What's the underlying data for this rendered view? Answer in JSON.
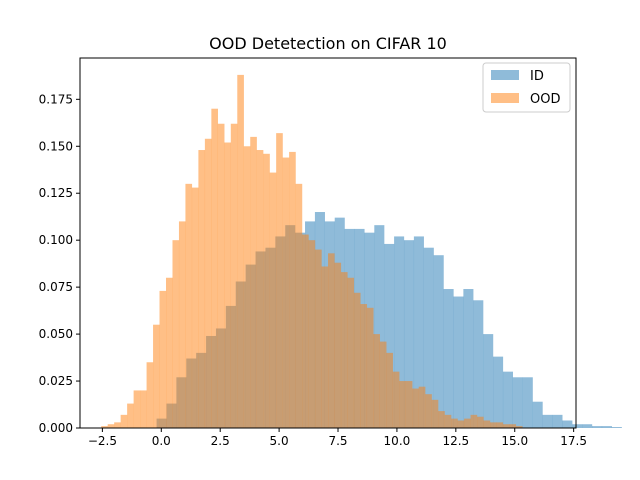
{
  "chart_data": {
    "type": "bar",
    "subtype": "histogram",
    "title": "OOD Detetection on CIFAR 10",
    "xlabel": "",
    "ylabel": "",
    "xlim": [
      -3.45,
      17.6
    ],
    "ylim": [
      0,
      0.197
    ],
    "xticks": [
      -2.5,
      0.0,
      2.5,
      5.0,
      7.5,
      10.0,
      12.5,
      15.0,
      17.5
    ],
    "xtick_labels": [
      "−2.5",
      "0.0",
      "2.5",
      "5.0",
      "7.5",
      "10.0",
      "12.5",
      "15.0",
      "17.5"
    ],
    "yticks": [
      0.0,
      0.025,
      0.05,
      0.075,
      0.1,
      0.125,
      0.15,
      0.175
    ],
    "ytick_labels": [
      "0.000",
      "0.025",
      "0.050",
      "0.075",
      "0.100",
      "0.125",
      "0.150",
      "0.175"
    ],
    "grid": false,
    "legend_position": "top-right",
    "series": [
      {
        "name": "ID",
        "color": "#1f77b4",
        "alpha": 0.5,
        "bin_start": -0.2,
        "bin_width": 0.42,
        "values": [
          0.005,
          0.013,
          0.027,
          0.037,
          0.04,
          0.049,
          0.053,
          0.065,
          0.078,
          0.087,
          0.094,
          0.096,
          0.102,
          0.108,
          0.104,
          0.11,
          0.115,
          0.11,
          0.112,
          0.106,
          0.106,
          0.104,
          0.108,
          0.098,
          0.102,
          0.1,
          0.102,
          0.096,
          0.092,
          0.074,
          0.07,
          0.074,
          0.068,
          0.05,
          0.038,
          0.03,
          0.027,
          0.027,
          0.014,
          0.007,
          0.007,
          0.004,
          0.002,
          0.002,
          0.001,
          0.001,
          0.0005
        ]
      },
      {
        "name": "OOD",
        "color": "#ff7f0e",
        "alpha": 0.5,
        "bin_start": -2.55,
        "bin_width": 0.275,
        "values": [
          0.001,
          0.002,
          0.003,
          0.007,
          0.013,
          0.02,
          0.02,
          0.035,
          0.055,
          0.073,
          0.08,
          0.1,
          0.11,
          0.13,
          0.128,
          0.148,
          0.154,
          0.17,
          0.162,
          0.152,
          0.162,
          0.188,
          0.15,
          0.155,
          0.148,
          0.146,
          0.136,
          0.157,
          0.144,
          0.147,
          0.13,
          0.103,
          0.1,
          0.095,
          0.086,
          0.093,
          0.088,
          0.083,
          0.08,
          0.072,
          0.066,
          0.064,
          0.05,
          0.046,
          0.04,
          0.03,
          0.025,
          0.025,
          0.021,
          0.022,
          0.018,
          0.015,
          0.009,
          0.007,
          0.005,
          0.004,
          0.005,
          0.007,
          0.006,
          0.004,
          0.003,
          0.003,
          0.002,
          0.002,
          0.001
        ]
      }
    ]
  }
}
